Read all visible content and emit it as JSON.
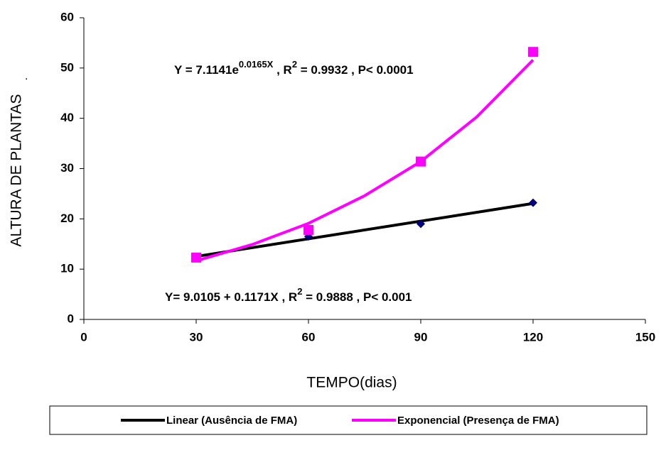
{
  "chart_data": {
    "type": "scatter",
    "xlabel": "TEMPO(dias)",
    "ylabel": "ALTURA DE PLANTAS",
    "xlim": [
      0,
      150
    ],
    "xticks": [
      0,
      30,
      60,
      90,
      120,
      150
    ],
    "ylim": [
      0,
      60
    ],
    "yticks": [
      0,
      10,
      20,
      30,
      40,
      50,
      60
    ],
    "series": [
      {
        "color": "#000080",
        "marker": "diamond",
        "x": [
          30,
          60,
          90,
          120
        ],
        "values": [
          12.3,
          16.5,
          19,
          23.2
        ]
      },
      {
        "color": "#ff00ff",
        "marker": "square",
        "x": [
          30,
          60,
          90,
          120
        ],
        "values": [
          12.3,
          17.8,
          31.4,
          53.2
        ]
      }
    ],
    "trendlines": [
      {
        "name": "Linear (Ausência de FMA)",
        "color": "#000000",
        "x": [
          30,
          120
        ],
        "values": [
          12.52,
          23.06
        ]
      },
      {
        "name": "Exponencial (Presença de FMA)",
        "color": "#ff00ff",
        "x": [
          30,
          45,
          60,
          75,
          90,
          105,
          120
        ],
        "values": [
          11.66,
          14.9,
          19.1,
          24.6,
          31.4,
          40.3,
          51.6
        ]
      }
    ],
    "annotations": [
      {
        "parts": [
          "Y = 7.1141e",
          "0.0165X",
          " , R",
          "2",
          " = 0.9932 , P< 0.0001"
        ]
      },
      {
        "parts": [
          "Y= 9.0105 + 0.1171X , R",
          "2",
          " = 0.9888 , P< 0.001"
        ]
      },
      {
        "parts": [
          "."
        ]
      }
    ]
  }
}
